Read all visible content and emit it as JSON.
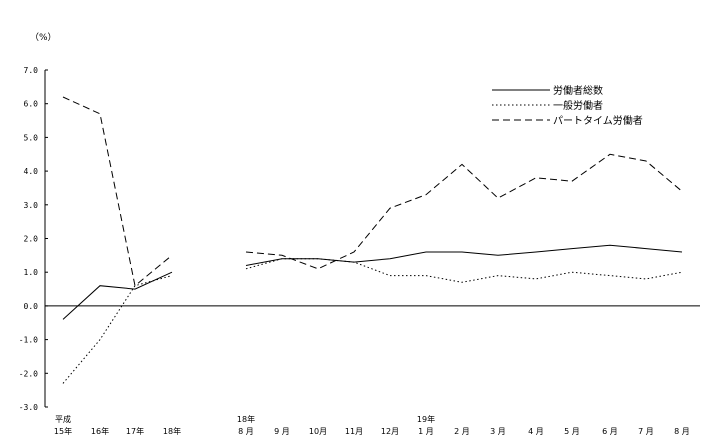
{
  "chart_data": {
    "type": "line",
    "unit_label": "（%）",
    "ylim": [
      -3.0,
      7.0
    ],
    "y_ticks": [
      "7.0",
      "6.0",
      "5.0",
      "4.0",
      "3.0",
      "2.0",
      "1.0",
      "0.0",
      "-1.0",
      "-2.0",
      "-3.0"
    ],
    "groups": [
      {
        "categories": [
          {
            "top": "平成",
            "bottom": "15年"
          },
          {
            "top": "",
            "bottom": "16年"
          },
          {
            "top": "",
            "bottom": "17年"
          },
          {
            "top": "",
            "bottom": "18年"
          }
        ]
      },
      {
        "categories": [
          {
            "top": "18年",
            "bottom": "8 月"
          },
          {
            "top": "",
            "bottom": "9 月"
          },
          {
            "top": "",
            "bottom": "10月"
          },
          {
            "top": "",
            "bottom": "11月"
          },
          {
            "top": "",
            "bottom": "12月"
          },
          {
            "top": "19年",
            "bottom": "1 月"
          },
          {
            "top": "",
            "bottom": "2 月"
          },
          {
            "top": "",
            "bottom": "3 月"
          },
          {
            "top": "",
            "bottom": "4 月"
          },
          {
            "top": "",
            "bottom": "5 月"
          },
          {
            "top": "",
            "bottom": "6 月"
          },
          {
            "top": "",
            "bottom": "7 月"
          },
          {
            "top": "",
            "bottom": "8 月"
          }
        ]
      }
    ],
    "series": [
      {
        "name": "労働者総数",
        "style": "solid",
        "color": "#000000",
        "values": [
          [
            -0.4,
            0.6,
            0.5,
            1.0
          ],
          [
            1.2,
            1.4,
            1.4,
            1.3,
            1.4,
            1.6,
            1.6,
            1.5,
            1.6,
            1.7,
            1.8,
            1.7,
            1.6
          ]
        ]
      },
      {
        "name": "一般労働者",
        "style": "dotted",
        "color": "#000000",
        "values": [
          [
            -2.3,
            -1.0,
            0.6,
            0.9
          ],
          [
            1.1,
            1.4,
            1.4,
            1.3,
            0.9,
            0.9,
            0.7,
            0.9,
            0.8,
            1.0,
            0.9,
            0.8,
            1.0
          ]
        ]
      },
      {
        "name": "パートタイム労働者",
        "style": "dashed",
        "color": "#000000",
        "values": [
          [
            6.2,
            5.7,
            0.6,
            1.5
          ],
          [
            1.6,
            1.5,
            1.1,
            1.6,
            2.9,
            3.3,
            4.2,
            3.2,
            3.8,
            3.7,
            4.5,
            4.3,
            3.4
          ]
        ]
      }
    ],
    "legend_position": "top-right",
    "grid": false
  }
}
